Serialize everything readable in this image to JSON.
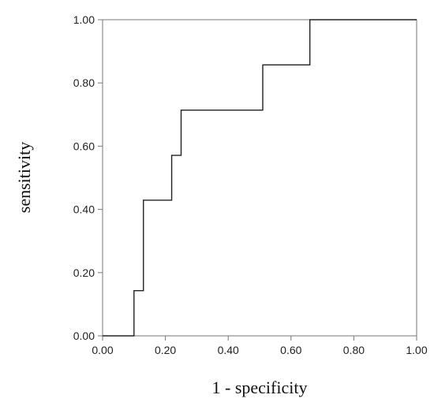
{
  "chart_data": {
    "type": "line",
    "title": "",
    "xlabel": "1 - specificity",
    "ylabel": "sensitivity",
    "xlim": [
      0,
      1
    ],
    "ylim": [
      0,
      1
    ],
    "xticks": [
      "0.00",
      "0.20",
      "0.40",
      "0.60",
      "0.80",
      "1.00"
    ],
    "yticks": [
      "0.00",
      "0.20",
      "0.40",
      "0.60",
      "0.80",
      "1.00"
    ],
    "grid": false,
    "legend": "none",
    "step": true,
    "series": [
      {
        "color": "#222222",
        "x": [
          0.0,
          0.1,
          0.1,
          0.13,
          0.13,
          0.22,
          0.22,
          0.25,
          0.25,
          0.51,
          0.51,
          0.66,
          0.66,
          1.0
        ],
        "y": [
          0.0,
          0.0,
          0.143,
          0.143,
          0.429,
          0.429,
          0.571,
          0.571,
          0.714,
          0.714,
          0.857,
          0.857,
          1.0,
          1.0
        ]
      }
    ]
  }
}
